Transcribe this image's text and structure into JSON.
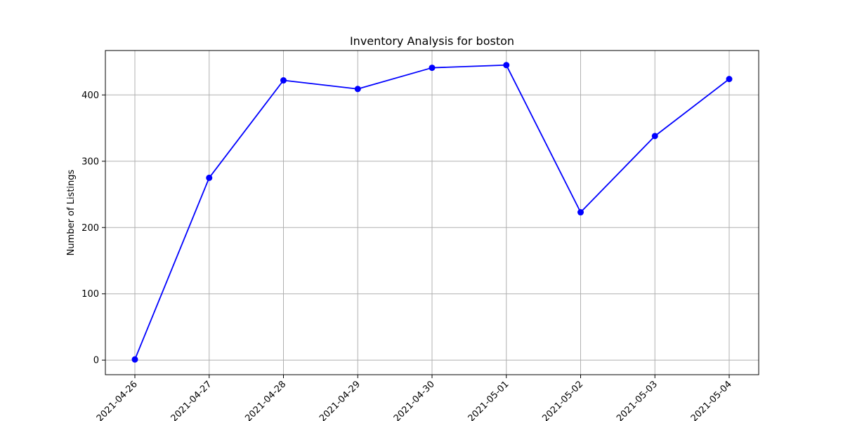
{
  "chart_data": {
    "type": "line",
    "title": "Inventory Analysis for boston",
    "xlabel": "",
    "ylabel": "Number of Listings",
    "x": [
      "2021-04-26",
      "2021-04-27",
      "2021-04-28",
      "2021-04-29",
      "2021-04-30",
      "2021-05-01",
      "2021-05-02",
      "2021-05-03",
      "2021-05-04"
    ],
    "series": [
      {
        "values": [
          1,
          275,
          422,
          409,
          441,
          445,
          223,
          338,
          424
        ],
        "color": "#0000ff",
        "marker": "circle"
      }
    ],
    "ylim": [
      -22,
      467
    ],
    "yticks": [
      0,
      100,
      200,
      300,
      400
    ],
    "grid": true,
    "legend": false,
    "colors": {
      "line": "#0000ff",
      "grid": "#b0b0b0",
      "axes": "#000000"
    }
  }
}
